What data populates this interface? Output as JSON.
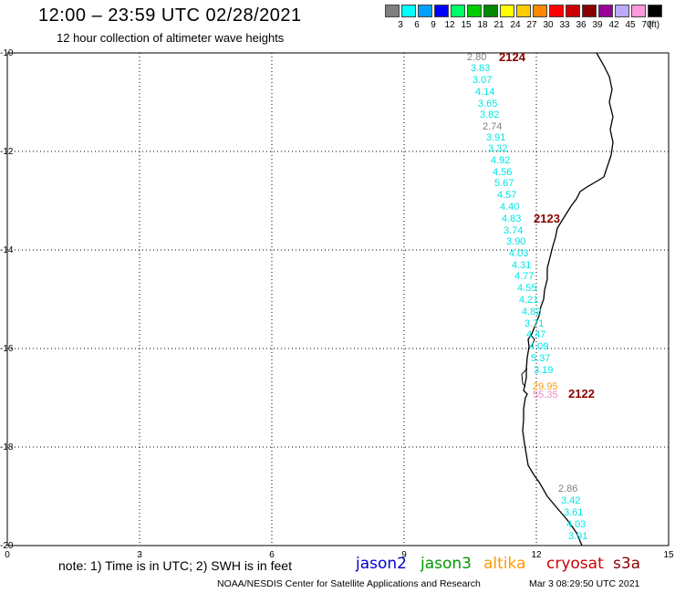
{
  "header": {
    "title": "12:00 – 23:59 UTC 02/28/2021",
    "subtitle": "12 hour collection of altimeter wave heights"
  },
  "color_scale": {
    "unit": "(ft)",
    "steps": [
      {
        "label": "3",
        "color": "#7f7f7f"
      },
      {
        "label": "6",
        "color": "#00ffff"
      },
      {
        "label": "9",
        "color": "#00a0ff"
      },
      {
        "label": "12",
        "color": "#0000ff"
      },
      {
        "label": "15",
        "color": "#00ff66"
      },
      {
        "label": "18",
        "color": "#00cc00"
      },
      {
        "label": "21",
        "color": "#008800"
      },
      {
        "label": "24",
        "color": "#ffff00"
      },
      {
        "label": "27",
        "color": "#ffcc00"
      },
      {
        "label": "30",
        "color": "#ff8800"
      },
      {
        "label": "33",
        "color": "#ff0000"
      },
      {
        "label": "36",
        "color": "#cc0000"
      },
      {
        "label": "39",
        "color": "#880000"
      },
      {
        "label": "42",
        "color": "#990099"
      },
      {
        "label": "45",
        "color": "#bbaaff"
      },
      {
        "label": "70",
        "color": "#ff99dd"
      },
      {
        "label": "",
        "color": "#000000"
      }
    ]
  },
  "axes": {
    "x_ticks": [
      "0",
      "3",
      "6",
      "9",
      "12",
      "15"
    ],
    "y_ticks": [
      "-10",
      "-12",
      "-14",
      "-16",
      "-18",
      "-20"
    ]
  },
  "pass_labels": [
    {
      "text": "2124",
      "color": "#8b0000"
    },
    {
      "text": "2123",
      "color": "#8b0000"
    },
    {
      "text": "2122",
      "color": "#8b0000"
    }
  ],
  "wave_points": [
    {
      "text": "2.80",
      "color": "#808080"
    },
    {
      "text": "3.83",
      "color": "#00e5e5"
    },
    {
      "text": "3.07",
      "color": "#00e5e5"
    },
    {
      "text": "4.14",
      "color": "#00e5e5"
    },
    {
      "text": "3.65",
      "color": "#00e5e5"
    },
    {
      "text": "3.82",
      "color": "#00e5e5"
    },
    {
      "text": "2.74",
      "color": "#808080"
    },
    {
      "text": "3.91",
      "color": "#00e5e5"
    },
    {
      "text": "3.32",
      "color": "#00e5e5"
    },
    {
      "text": "4.92",
      "color": "#00e5e5"
    },
    {
      "text": "4.56",
      "color": "#00e5e5"
    },
    {
      "text": "5.67",
      "color": "#00e5e5"
    },
    {
      "text": "4.57",
      "color": "#00e5e5"
    },
    {
      "text": "4.40",
      "color": "#00e5e5"
    },
    {
      "text": "4.83",
      "color": "#00e5e5"
    },
    {
      "text": "3.74",
      "color": "#00e5e5"
    },
    {
      "text": "3.90",
      "color": "#00e5e5"
    },
    {
      "text": "4.03",
      "color": "#00e5e5"
    },
    {
      "text": "4.31",
      "color": "#00e5e5"
    },
    {
      "text": "4.77",
      "color": "#00e5e5"
    },
    {
      "text": "4.55",
      "color": "#00e5e5"
    },
    {
      "text": "4.21",
      "color": "#00e5e5"
    },
    {
      "text": "4.82",
      "color": "#00e5e5"
    },
    {
      "text": "3.71",
      "color": "#00e5e5"
    },
    {
      "text": "4.47",
      "color": "#00e5e5"
    },
    {
      "text": "4.09",
      "color": "#00e5e5"
    },
    {
      "text": "5.37",
      "color": "#00e5e5"
    },
    {
      "text": "3.19",
      "color": "#00e5e5"
    },
    {
      "text": "29.95",
      "color": "#ff9900"
    },
    {
      "text": "55.35",
      "color": "#ee88cc"
    },
    {
      "text": "2.86",
      "color": "#808080"
    },
    {
      "text": "3.42",
      "color": "#00e5e5"
    },
    {
      "text": "3.61",
      "color": "#00e5e5"
    },
    {
      "text": "4.03",
      "color": "#00e5e5"
    },
    {
      "text": "3.91",
      "color": "#00e5e5"
    }
  ],
  "footer": {
    "note": "note:  1) Time is in UTC;  2) SWH is in feet",
    "credit": "NOAA/NESDIS Center for Satellite Applications and Research",
    "generated": "Mar  3 08:29:50 UTC 2021"
  },
  "legend": [
    {
      "text": "jason2",
      "color": "#0000cc"
    },
    {
      "text": "jason3",
      "color": "#009900"
    },
    {
      "text": "altika",
      "color": "#ff9900"
    },
    {
      "text": "cryosat",
      "color": "#cc0000"
    },
    {
      "text": "s3a",
      "color": "#8b0000"
    }
  ]
}
